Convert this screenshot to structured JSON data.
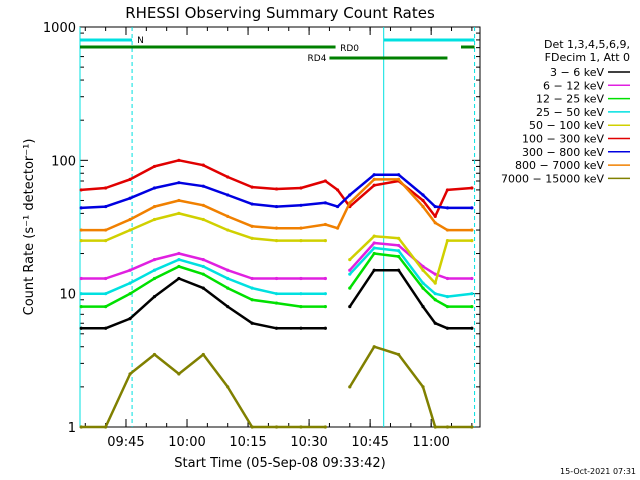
{
  "chart_data": {
    "type": "line",
    "title": "RHESSI Observing Summary Count Rates",
    "ylabel": "Count Rate (s⁻¹ detector⁻¹)",
    "xlabel": "Start Time (05-Sep-08 09:33:42)",
    "x_ticks": [
      "09:45",
      "10:00",
      "10:15",
      "10:30",
      "10:45",
      "11:00"
    ],
    "y_scale": "log",
    "y_ticks": [
      "1",
      "10",
      "100",
      "1000"
    ],
    "xlim": [
      "09:33:42",
      "11:12:00"
    ],
    "ylim": [
      1,
      1000
    ],
    "grid": false,
    "legend_position": "right",
    "legend_header": [
      "Det 1,3,4,5,6,9,",
      "FDecim 1, Att 0"
    ],
    "timestamp": "15-Oct-2021 07:31",
    "x_times": [
      "09:34",
      "09:40",
      "09:46",
      "09:52",
      "09:58",
      "10:04",
      "10:10",
      "10:16",
      "10:22",
      "10:28",
      "10:34",
      "10:37",
      "10:40",
      "10:46",
      "10:52",
      "10:58",
      "11:01",
      "11:04",
      "11:10"
    ],
    "series": [
      {
        "name": "3 − 6 keV",
        "color": "#000000",
        "values": [
          5.5,
          5.5,
          6.5,
          9.5,
          13,
          11,
          8,
          6,
          5.5,
          5.5,
          5.5,
          null,
          8,
          15,
          15,
          8,
          6,
          5.5,
          5.5
        ]
      },
      {
        "name": "6 − 12 keV",
        "color": "#e020e0",
        "values": [
          13,
          13,
          15,
          18,
          20,
          18,
          15,
          13,
          13,
          13,
          13,
          null,
          15,
          24,
          23,
          16,
          14,
          13,
          13
        ]
      },
      {
        "name": "12 − 25 keV",
        "color": "#00e000",
        "values": [
          8,
          8,
          10,
          13,
          16,
          14,
          11,
          9,
          8.5,
          8,
          8,
          null,
          11,
          20,
          19,
          11,
          9,
          8,
          8
        ]
      },
      {
        "name": "25 − 50 keV",
        "color": "#00e0e0",
        "values": [
          10,
          10,
          12,
          15,
          18,
          16,
          13,
          11,
          10,
          10,
          10,
          null,
          14,
          22,
          21,
          12,
          10,
          9.5,
          10
        ]
      },
      {
        "name": "50 − 100 keV",
        "color": "#d0d000",
        "values": [
          25,
          25,
          30,
          36,
          40,
          36,
          30,
          26,
          25,
          25,
          25,
          null,
          18,
          27,
          26,
          15,
          12,
          25,
          25
        ]
      },
      {
        "name": "100 − 300 keV",
        "color": "#e00000",
        "values": [
          60,
          62,
          72,
          90,
          100,
          92,
          75,
          63,
          61,
          62,
          70,
          60,
          45,
          65,
          70,
          50,
          38,
          60,
          62
        ]
      },
      {
        "name": "300 − 800 keV",
        "color": "#0000e0",
        "values": [
          44,
          45,
          52,
          62,
          68,
          64,
          55,
          47,
          45,
          46,
          48,
          45,
          55,
          78,
          78,
          55,
          45,
          44,
          44
        ]
      },
      {
        "name": "800 − 7000 keV",
        "color": "#f08000",
        "values": [
          30,
          30,
          36,
          45,
          50,
          46,
          38,
          32,
          31,
          31,
          33,
          31,
          48,
          72,
          72,
          45,
          34,
          30,
          30
        ]
      },
      {
        "name": "7000 − 15000 keV",
        "color": "#808000",
        "values": [
          1,
          1,
          2.5,
          3.5,
          2.5,
          3.5,
          2,
          1,
          1,
          1,
          1,
          null,
          2,
          4,
          3.5,
          2,
          1,
          1,
          1
        ]
      }
    ],
    "annotations": [
      {
        "label": "N",
        "color": "#00e0e0"
      },
      {
        "label": "RD0",
        "color": "#008000"
      },
      {
        "label": "RD4",
        "color": "#008000"
      }
    ]
  }
}
